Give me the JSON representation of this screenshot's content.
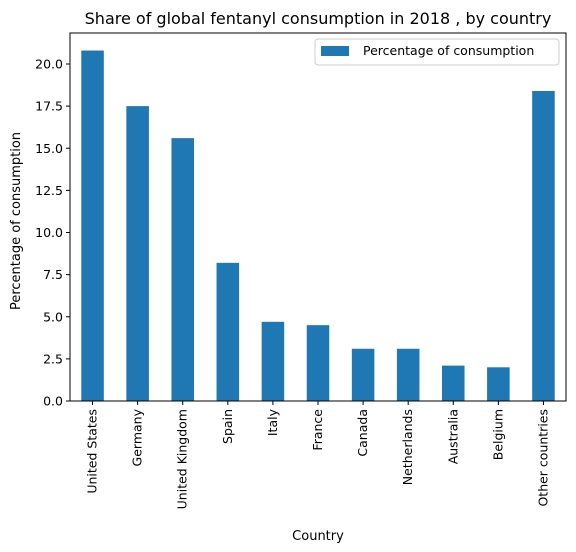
{
  "chart_data": {
    "type": "bar",
    "title": "Share of global fentanyl consumption in 2018 , by country",
    "xlabel": "Country",
    "ylabel": "Percentage of consumption",
    "categories": [
      "United States",
      "Germany",
      "United Kingdom",
      "Spain",
      "Italy",
      "France",
      "Canada",
      "Netherlands",
      "Australia",
      "Belgium",
      "Other countries"
    ],
    "series": [
      {
        "name": "Percentage of consumption",
        "values": [
          20.8,
          17.5,
          15.6,
          8.2,
          4.7,
          4.5,
          3.1,
          3.1,
          2.1,
          2.0,
          18.4
        ],
        "color": "#1f77b4"
      }
    ],
    "ylim": [
      0,
      21.84
    ],
    "yticks": [
      0.0,
      2.5,
      5.0,
      7.5,
      10.0,
      12.5,
      15.0,
      17.5,
      20.0
    ],
    "ytick_labels": [
      "0.0",
      "2.5",
      "5.0",
      "7.5",
      "10.0",
      "12.5",
      "15.0",
      "17.5",
      "20.0"
    ],
    "legend": {
      "placement": "top-right"
    },
    "grid": false
  }
}
